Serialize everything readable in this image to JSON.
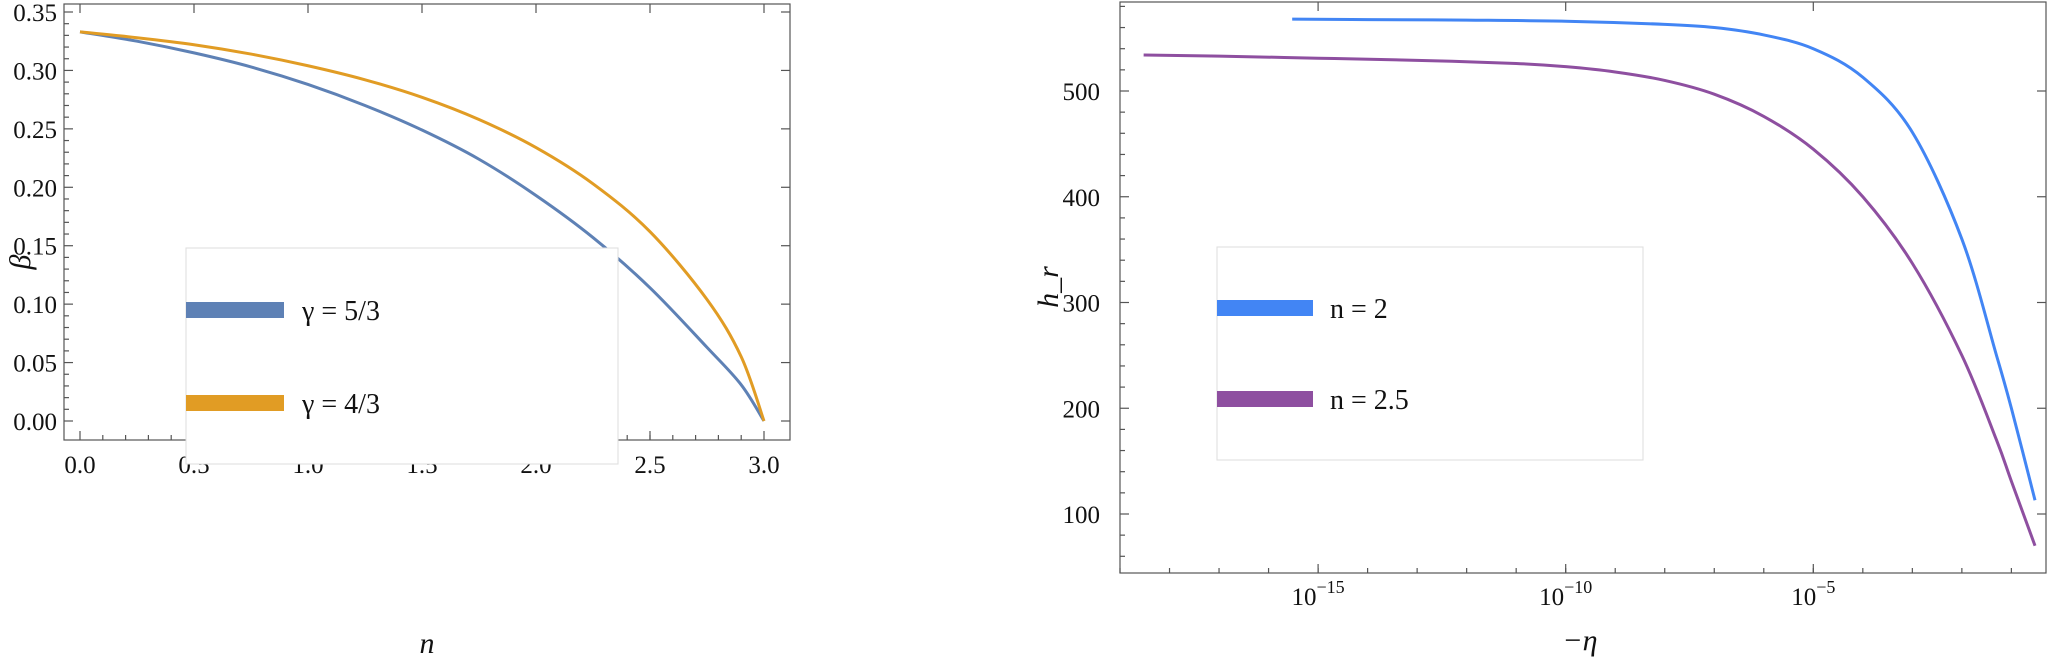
{
  "chart_data": [
    {
      "type": "line",
      "xlabel": "n",
      "ylabel": "β",
      "xlim": [
        0,
        3
      ],
      "ylim": [
        0,
        0.35
      ],
      "xticks": [
        "0.0",
        "0.5",
        "1.0",
        "1.5",
        "2.0",
        "2.5",
        "3.0"
      ],
      "yticks": [
        "0.00",
        "0.05",
        "0.10",
        "0.15",
        "0.20",
        "0.25",
        "0.30",
        "0.35"
      ],
      "legend_position": "center-left",
      "series": [
        {
          "name": "γ = 5/3",
          "color": "#5e81b5",
          "x": [
            0,
            0.25,
            0.5,
            0.75,
            1.0,
            1.25,
            1.5,
            1.75,
            2.0,
            2.25,
            2.5,
            2.75,
            2.9,
            3.0
          ],
          "y": [
            0.333,
            0.325,
            0.315,
            0.303,
            0.288,
            0.27,
            0.249,
            0.224,
            0.193,
            0.157,
            0.114,
            0.063,
            0.031,
            0.0
          ]
        },
        {
          "name": "γ = 4/3",
          "color": "#e19c24",
          "x": [
            0,
            0.25,
            0.5,
            0.75,
            1.0,
            1.25,
            1.5,
            1.75,
            2.0,
            2.25,
            2.5,
            2.75,
            2.9,
            3.0
          ],
          "y": [
            0.333,
            0.328,
            0.322,
            0.314,
            0.304,
            0.292,
            0.277,
            0.258,
            0.234,
            0.203,
            0.162,
            0.104,
            0.055,
            0.0
          ]
        }
      ]
    },
    {
      "type": "line",
      "xlabel": "−η",
      "ylabel": "h_r",
      "x_scale": "log",
      "xlim": [
        1e-19,
        0.5
      ],
      "ylim": [
        42,
        600
      ],
      "xticks": [
        {
          "value": 1e-15,
          "base": "10",
          "exp": "−15"
        },
        {
          "value": 1e-10,
          "base": "10",
          "exp": "−10"
        },
        {
          "value": 1e-05,
          "base": "10",
          "exp": "−5"
        }
      ],
      "yticks": [
        "100",
        "200",
        "300",
        "400",
        "500"
      ],
      "legend_position": "center-left",
      "series": [
        {
          "name": "n = 2",
          "color": "#4285f4",
          "x": [
            3e-16,
            1e-14,
            1e-12,
            1e-10,
            1e-08,
            1e-07,
            1e-06,
            1e-05,
            0.0001,
            0.001,
            0.01,
            0.05,
            0.1,
            0.3
          ],
          "y": [
            568,
            567.5,
            567,
            566,
            563,
            560,
            553,
            540,
            513,
            461,
            360,
            250,
            200,
            113
          ]
        },
        {
          "name": "n = 2.5",
          "color": "#8e4fa0",
          "x": [
            3e-19,
            1e-17,
            1e-15,
            1e-13,
            1e-11,
            1e-10,
            1e-09,
            1e-08,
            1e-07,
            1e-06,
            1e-05,
            0.0001,
            0.001,
            0.01,
            0.05,
            0.1,
            0.3
          ],
          "y": [
            534,
            533,
            531,
            529,
            526,
            523,
            518,
            510,
            497,
            476,
            445,
            400,
            337,
            250,
            170,
            131,
            70
          ]
        }
      ]
    }
  ]
}
